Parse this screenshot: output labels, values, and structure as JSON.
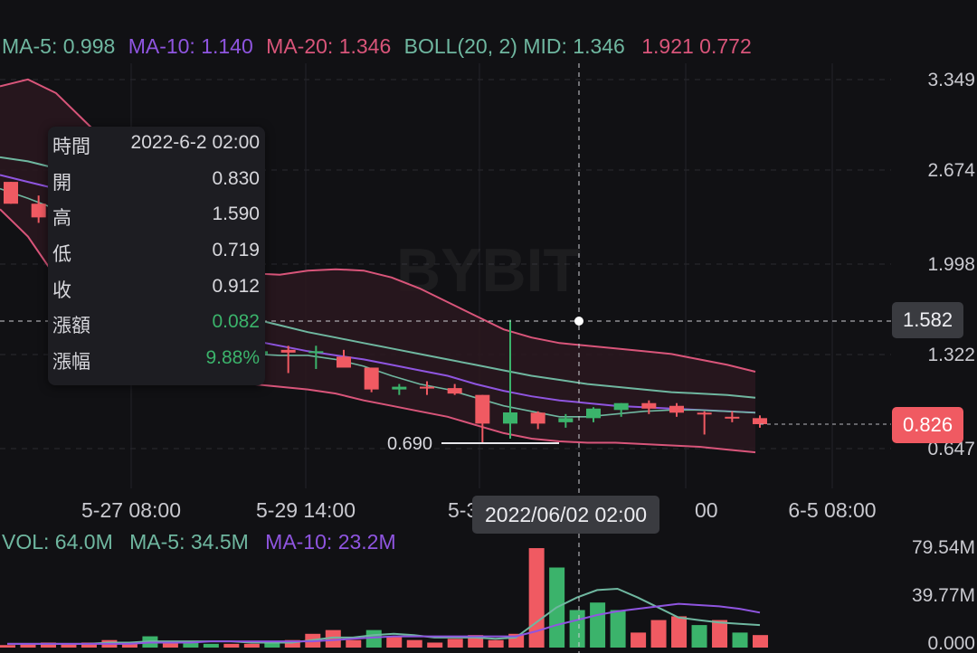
{
  "legend_main": {
    "ma5": "MA-5: 0.998",
    "ma10": "MA-10: 1.140",
    "ma20": "MA-20: 1.346",
    "boll": "BOLL(20, 2) MID: 1.346",
    "boll_bands": "1.921 0.772"
  },
  "legend_volume": {
    "vol": "VOL: 64.0M",
    "ma5": "MA-5: 34.5M",
    "ma10": "MA-10: 23.2M"
  },
  "tooltip": {
    "rows": [
      {
        "label": "時間",
        "value": "2022-6-2 02:00"
      },
      {
        "label": "開",
        "value": "0.830"
      },
      {
        "label": "高",
        "value": "1.590"
      },
      {
        "label": "低",
        "value": "0.719"
      },
      {
        "label": "收",
        "value": "0.912"
      },
      {
        "label": "漲額",
        "value": "0.082"
      },
      {
        "label": "漲幅",
        "value": "9.88%"
      }
    ]
  },
  "crosshair": {
    "price": "1.582",
    "time": "2022/06/02 02:00"
  },
  "last_price": "0.826",
  "watermark": "BYBIT",
  "colors": {
    "up": "#3bb36b",
    "down": "#f05a62",
    "ma5": "#6fb7a0",
    "ma10": "#8f55e0",
    "boll": "#d9557a",
    "ma20": "#e06a8a",
    "band_fill": "#2a181e",
    "text": "#c9c9cf"
  },
  "chart_data": [
    {
      "type": "candlestick",
      "y_axis_ticks": [
        "3.349",
        "2.674",
        "1.998",
        "1.322",
        "0.647"
      ],
      "y_range": [
        0.5,
        3.5
      ],
      "x_tick_labels": [
        "5-27 08:00",
        "5-29 14:00",
        "5-31",
        "00",
        "6-5 08:00"
      ],
      "min_marker": "0.690",
      "candles": [
        {
          "o": 2.6,
          "h": 2.6,
          "l": 2.44,
          "c": 2.44
        },
        {
          "o": 2.44,
          "h": 2.5,
          "l": 2.3,
          "c": 2.34
        },
        {
          "o": 2.38,
          "h": 2.44,
          "l": 2.02,
          "c": 2.22
        },
        {
          "o": 1.72,
          "h": 1.8,
          "l": 1.6,
          "c": 1.62
        },
        {
          "o": 1.62,
          "h": 1.65,
          "l": 1.4,
          "c": 1.52
        },
        {
          "o": 1.52,
          "h": 1.56,
          "l": 1.15,
          "c": 1.22
        },
        {
          "o": 1.22,
          "h": 1.36,
          "l": 1.2,
          "c": 1.36
        },
        {
          "o": 1.32,
          "h": 1.48,
          "l": 1.3,
          "c": 1.35
        },
        {
          "o": 1.35,
          "h": 1.44,
          "l": 1.3,
          "c": 1.34
        },
        {
          "o": 1.34,
          "h": 1.4,
          "l": 1.31,
          "c": 1.36
        },
        {
          "o": 1.37,
          "h": 1.4,
          "l": 1.2,
          "c": 1.35
        },
        {
          "o": 1.36,
          "h": 1.4,
          "l": 1.23,
          "c": 1.36
        },
        {
          "o": 1.32,
          "h": 1.37,
          "l": 1.26,
          "c": 1.24
        },
        {
          "o": 1.24,
          "h": 1.24,
          "l": 1.06,
          "c": 1.08
        },
        {
          "o": 1.08,
          "h": 1.12,
          "l": 1.04,
          "c": 1.1
        },
        {
          "o": 1.1,
          "h": 1.14,
          "l": 1.04,
          "c": 1.09
        },
        {
          "o": 1.09,
          "h": 1.12,
          "l": 1.04,
          "c": 1.05
        },
        {
          "o": 1.04,
          "h": 1.04,
          "l": 0.69,
          "c": 0.83
        },
        {
          "o": 0.83,
          "h": 1.59,
          "l": 0.72,
          "c": 0.912
        },
        {
          "o": 0.91,
          "h": 0.92,
          "l": 0.79,
          "c": 0.83
        },
        {
          "o": 0.84,
          "h": 0.9,
          "l": 0.8,
          "c": 0.87
        },
        {
          "o": 0.87,
          "h": 0.95,
          "l": 0.84,
          "c": 0.94
        },
        {
          "o": 0.93,
          "h": 0.98,
          "l": 0.88,
          "c": 0.98
        },
        {
          "o": 0.98,
          "h": 1.0,
          "l": 0.9,
          "c": 0.94
        },
        {
          "o": 0.96,
          "h": 0.98,
          "l": 0.88,
          "c": 0.91
        },
        {
          "o": 0.91,
          "h": 0.92,
          "l": 0.75,
          "c": 0.9
        },
        {
          "o": 0.88,
          "h": 0.92,
          "l": 0.84,
          "c": 0.87
        },
        {
          "o": 0.87,
          "h": 0.89,
          "l": 0.8,
          "c": 0.826
        }
      ],
      "ma5": [
        2.55,
        2.48,
        2.4,
        2.32,
        1.8,
        1.62,
        1.48,
        1.42,
        1.38,
        1.34,
        1.33,
        1.33,
        1.3,
        1.25,
        1.18,
        1.12,
        1.08,
        1.02,
        0.96,
        0.92,
        0.88,
        0.88,
        0.9,
        0.92,
        0.93,
        0.93,
        0.92,
        0.91
      ],
      "ma10": [
        2.65,
        2.6,
        2.55,
        2.5,
        1.72,
        1.68,
        1.62,
        1.56,
        1.5,
        1.44,
        1.4,
        1.36,
        1.33,
        1.3,
        1.26,
        1.22,
        1.18,
        1.12,
        1.07,
        1.03,
        1.0,
        0.98,
        0.96,
        0.95,
        0.94,
        0.93,
        0.92,
        0.91
      ],
      "ma20": [
        2.78,
        2.75,
        2.7,
        2.66,
        1.9,
        1.84,
        1.78,
        1.72,
        1.66,
        1.6,
        1.55,
        1.5,
        1.46,
        1.42,
        1.38,
        1.34,
        1.3,
        1.26,
        1.22,
        1.18,
        1.15,
        1.12,
        1.1,
        1.08,
        1.06,
        1.05,
        1.04,
        1.02
      ],
      "boll_upper": [
        3.3,
        3.35,
        3.25,
        3.05,
        2.85,
        2.55,
        2.3,
        2.1,
        1.98,
        1.93,
        1.92,
        1.95,
        1.96,
        1.95,
        1.9,
        1.82,
        1.72,
        1.62,
        1.52,
        1.46,
        1.42,
        1.4,
        1.38,
        1.36,
        1.34,
        1.3,
        1.26,
        1.21
      ],
      "boll_lower": [
        2.4,
        2.2,
        1.9,
        1.6,
        1.42,
        1.3,
        1.2,
        1.14,
        1.12,
        1.12,
        1.1,
        1.08,
        1.05,
        1.0,
        0.96,
        0.92,
        0.88,
        0.82,
        0.76,
        0.72,
        0.7,
        0.69,
        0.69,
        0.68,
        0.67,
        0.66,
        0.64,
        0.62
      ]
    },
    {
      "type": "bar",
      "y_axis_ticks": [
        "79.54M",
        "39.77M",
        "0.000"
      ],
      "y_range": [
        0,
        79.54
      ],
      "values": [
        2,
        3,
        4,
        3,
        4,
        6,
        4,
        9,
        5,
        4,
        3,
        3,
        3,
        5,
        6,
        11,
        14,
        6,
        14,
        9,
        6,
        4,
        7,
        10,
        6,
        11,
        79.5,
        64,
        30,
        36,
        30,
        12,
        22,
        25,
        18,
        22,
        12,
        10
      ],
      "up": [
        false,
        false,
        false,
        false,
        false,
        false,
        false,
        true,
        false,
        true,
        true,
        false,
        false,
        true,
        false,
        false,
        false,
        false,
        true,
        false,
        false,
        false,
        false,
        false,
        false,
        false,
        false,
        true,
        true,
        true,
        true,
        false,
        false,
        false,
        true,
        false,
        true,
        false
      ],
      "ma5": [
        3,
        3,
        3,
        3,
        3,
        4,
        4,
        5,
        5,
        5,
        5,
        5,
        4,
        4,
        4,
        6,
        8,
        8,
        10,
        11,
        10,
        8,
        8,
        8,
        7,
        8,
        20,
        32,
        40,
        46,
        47,
        40,
        32,
        24,
        22,
        20,
        19,
        18
      ],
      "ma10": [
        3,
        3,
        3,
        3,
        3,
        3,
        3,
        4,
        4,
        4,
        5,
        5,
        5,
        5,
        5,
        5,
        6,
        7,
        8,
        9,
        9,
        9,
        9,
        9,
        9,
        9,
        13,
        18,
        22,
        26,
        29,
        31,
        33,
        35,
        34,
        33,
        31,
        28
      ]
    }
  ]
}
